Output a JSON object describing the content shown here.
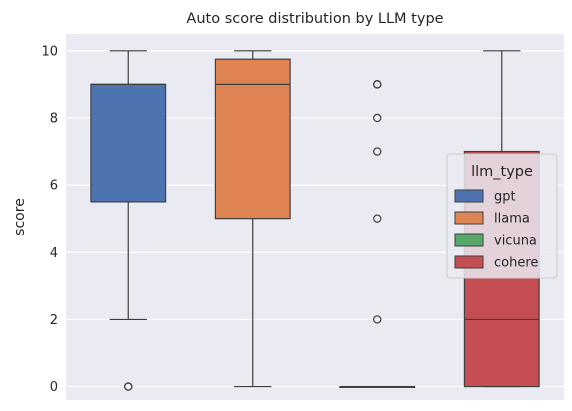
{
  "chart_data": {
    "type": "box",
    "title": "Auto score distribution by LLM type",
    "xlabel": "",
    "ylabel": "score",
    "ylim": [
      -0.4,
      10.5
    ],
    "yticks": [
      0,
      2,
      4,
      6,
      8,
      10
    ],
    "grid": true,
    "legend": {
      "title": "llm_type",
      "placement": "right"
    },
    "series": [
      {
        "name": "gpt",
        "color": "#4c72b0",
        "whisker_low": 2,
        "q1": 5.5,
        "median": 9,
        "q3": 9,
        "whisker_high": 10,
        "outliers": [
          0,
          0
        ]
      },
      {
        "name": "llama",
        "color": "#dd8452",
        "whisker_low": 0,
        "q1": 5,
        "median": 9,
        "q3": 9.75,
        "whisker_high": 10,
        "outliers": []
      },
      {
        "name": "vicuna",
        "color": "#55a868",
        "whisker_low": 0,
        "q1": 0,
        "median": 0,
        "q3": 0,
        "whisker_high": 0,
        "outliers": [
          2,
          5,
          7,
          8,
          9,
          9
        ]
      },
      {
        "name": "cohere",
        "color": "#c44e52",
        "whisker_low": 0,
        "q1": 0,
        "median": 2,
        "q3": 7,
        "whisker_high": 10,
        "outliers": []
      }
    ]
  }
}
